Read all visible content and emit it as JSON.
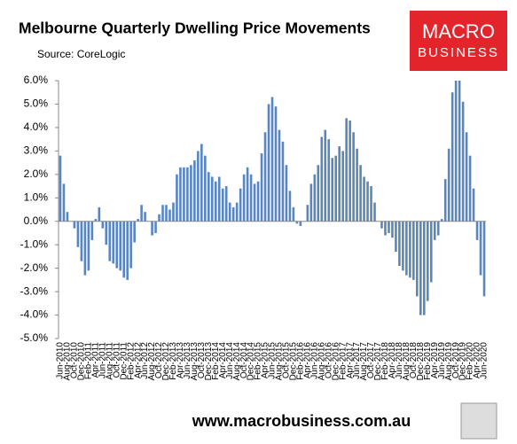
{
  "chart_data": {
    "type": "bar",
    "title": "Melbourne Quarterly Dwelling Price Movements",
    "subtitle": "Source: CoreLogic",
    "logo": [
      "MACRO",
      "BUSINESS"
    ],
    "footer": "www.macrobusiness.com.au",
    "color": "#5a86c0",
    "categories": [
      "Jun-2010",
      null,
      "Aug-2010",
      null,
      "Oct-2010",
      null,
      "Dec-2010",
      null,
      "Feb-2011",
      null,
      "Apr-2011",
      null,
      "Jun-2011",
      null,
      "Aug-2011",
      null,
      "Oct-2011",
      null,
      "Dec-2011",
      null,
      "Feb-2012",
      null,
      "Apr-2012",
      null,
      "Jun-2012",
      null,
      "Aug-2012",
      null,
      "Oct-2012",
      null,
      "Dec-2012",
      null,
      "Feb-2013",
      null,
      "Apr-2013",
      null,
      "Jun-2013",
      null,
      "Aug-2013",
      null,
      "Oct-2013",
      null,
      "Dec-2013",
      null,
      "Feb-2014",
      null,
      "Apr-2014",
      null,
      "Jun-2014",
      null,
      "Aug-2014",
      null,
      "Oct-2014",
      null,
      "Dec-2014",
      null,
      "Feb-2015",
      null,
      "Apr-2015",
      null,
      "Jun-2015",
      null,
      "Aug-2015",
      null,
      "Oct-2015",
      null,
      "Dec-2015",
      null,
      "Feb-2016",
      null,
      "Apr-2016",
      null,
      "Jun-2016",
      null,
      "Aug-2016",
      null,
      "Oct-2016",
      null,
      "Dec-2016",
      null,
      "Feb-2017",
      null,
      "Apr-2017",
      null,
      "Jun-2017",
      null,
      "Aug-2017",
      null,
      "Oct-2017",
      null,
      "Dec-2017",
      null,
      "Feb-2018",
      null,
      "Apr-2018",
      null,
      "Jun-2018",
      null,
      "Aug-2018",
      null,
      "Oct-2018",
      null,
      "Dec-2018",
      null,
      "Feb-2019",
      null,
      "Apr-2019",
      null,
      "Jun-2019",
      null,
      "Aug-2019",
      null,
      "Oct-2019",
      null,
      "Dec-2019",
      null,
      "Feb-2020",
      null,
      "Apr-2020",
      null,
      "Jun-2020"
    ],
    "values": [
      2.8,
      1.6,
      0.4,
      0,
      -0.3,
      -1.1,
      -1.7,
      -2.3,
      -2.1,
      -0.8,
      0.1,
      0.6,
      -0.3,
      -1.0,
      -1.7,
      -1.8,
      -2.0,
      -2.1,
      -2.4,
      -2.5,
      -2.0,
      -0.9,
      0.1,
      0.7,
      0.4,
      0,
      -0.6,
      -0.5,
      0.3,
      0.7,
      0.7,
      0.5,
      0.8,
      2.0,
      2.3,
      2.3,
      2.3,
      2.4,
      2.6,
      3.0,
      3.3,
      2.8,
      2.1,
      1.9,
      1.7,
      1.9,
      1.4,
      1.5,
      0.8,
      0.6,
      0.8,
      1.4,
      2.0,
      2.3,
      2.0,
      1.6,
      1.7,
      2.9,
      3.8,
      5.0,
      5.3,
      4.9,
      3.9,
      3.4,
      2.4,
      1.3,
      0.6,
      -0.1,
      -0.2,
      0,
      0.7,
      1.6,
      2.0,
      2.4,
      3.6,
      3.9,
      3.5,
      2.7,
      2.8,
      3.2,
      3.0,
      4.4,
      4.3,
      3.8,
      3.1,
      2.4,
      1.9,
      1.7,
      1.5,
      0.8,
      0,
      -0.3,
      -0.6,
      -0.5,
      -0.7,
      -1.3,
      -1.9,
      -2.1,
      -2.3,
      -2.4,
      -2.5,
      -3.2,
      -4.0,
      -4.0,
      -3.4,
      -2.6,
      -0.8,
      -0.6,
      0.1,
      1.8,
      3.1,
      5.5,
      6.0,
      6.0,
      5.1,
      3.8,
      2.8,
      1.4,
      -0.8,
      -2.3,
      -3.2
    ],
    "ylim": [
      -5,
      6
    ],
    "yticks": [
      {
        "value": -5,
        "label": "-5.0%"
      },
      {
        "value": -4,
        "label": "-4.0%"
      },
      {
        "value": -3,
        "label": "-3.0%"
      },
      {
        "value": -2,
        "label": "-2.0%"
      },
      {
        "value": -1,
        "label": "-1.0%"
      },
      {
        "value": 0,
        "label": "0.0%"
      },
      {
        "value": 1,
        "label": "1.0%"
      },
      {
        "value": 2,
        "label": "2.0%"
      },
      {
        "value": 3,
        "label": "3.0%"
      },
      {
        "value": 4,
        "label": "4.0%"
      },
      {
        "value": 5,
        "label": "5.0%"
      },
      {
        "value": 6,
        "label": "6.0%"
      }
    ]
  }
}
